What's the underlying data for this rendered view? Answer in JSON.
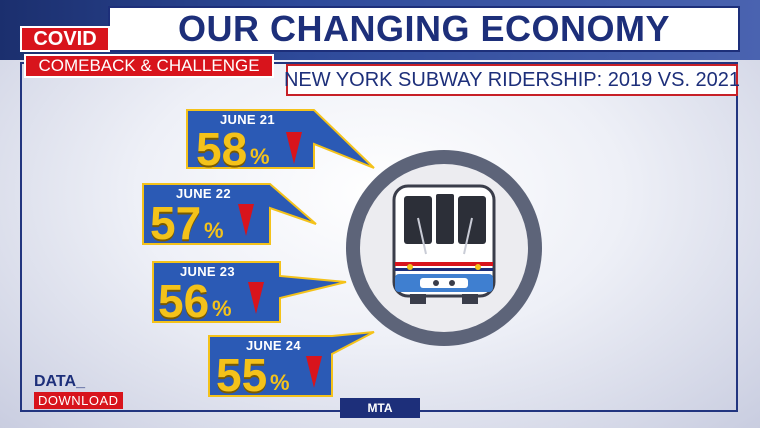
{
  "header": {
    "title": "OUR CHANGING ECONOMY",
    "covid_tag": "COVID",
    "comeback_tag": "COMEBACK & CHALLENGE"
  },
  "subtitle": "NEW YORK SUBWAY RIDERSHIP: 2019 VS. 2021",
  "callouts": [
    {
      "date": "JUNE 21",
      "value": "58",
      "unit": "%"
    },
    {
      "date": "JUNE 22",
      "value": "57",
      "unit": "%"
    },
    {
      "date": "JUNE 23",
      "value": "56",
      "unit": "%"
    },
    {
      "date": "JUNE 24",
      "value": "55",
      "unit": "%"
    }
  ],
  "footer": {
    "data_label": "DATA_",
    "download_label": "DOWNLOAD",
    "source": "MTA"
  },
  "colors": {
    "navy": "#1d2f7a",
    "callout_blue": "#2b5ab5",
    "yellow": "#f4c21a",
    "red": "#d8141c"
  },
  "icons": {
    "train": "subway-train-icon",
    "arrow": "down-arrow-icon"
  }
}
